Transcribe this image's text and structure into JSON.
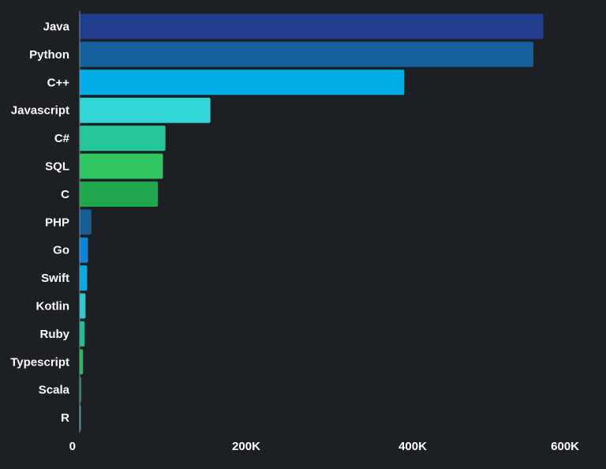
{
  "chart_data": {
    "type": "bar",
    "orientation": "horizontal",
    "title": "",
    "xlabel": "",
    "ylabel": "",
    "categories": [
      "Java",
      "Python",
      "C++",
      "Javascript",
      "C#",
      "SQL",
      "C",
      "PHP",
      "Go",
      "Swift",
      "Kotlin",
      "Ruby",
      "Typescript",
      "Scala",
      "R"
    ],
    "values": [
      557000,
      545000,
      390000,
      157000,
      103000,
      100000,
      94000,
      14000,
      10000,
      9000,
      7000,
      6000,
      4000,
      2000,
      1000
    ],
    "colors": [
      "#1f3d8c",
      "#17609e",
      "#02ade6",
      "#33d6d6",
      "#24c79c",
      "#2ec760",
      "#20a64c",
      "#175e96",
      "#0d85d9",
      "#0aa8e0",
      "#2ec9cf",
      "#22bd92",
      "#26bf5e",
      "#1e8a48",
      "#2aa8a8"
    ],
    "xlim": [
      0,
      600000
    ],
    "x_ticks": [
      {
        "value": 0,
        "label": "0"
      },
      {
        "value": 200000,
        "label": "200K"
      },
      {
        "value": 400000,
        "label": "400K"
      },
      {
        "value": 600000,
        "label": "600K"
      }
    ],
    "grid": false,
    "legend": "none"
  }
}
